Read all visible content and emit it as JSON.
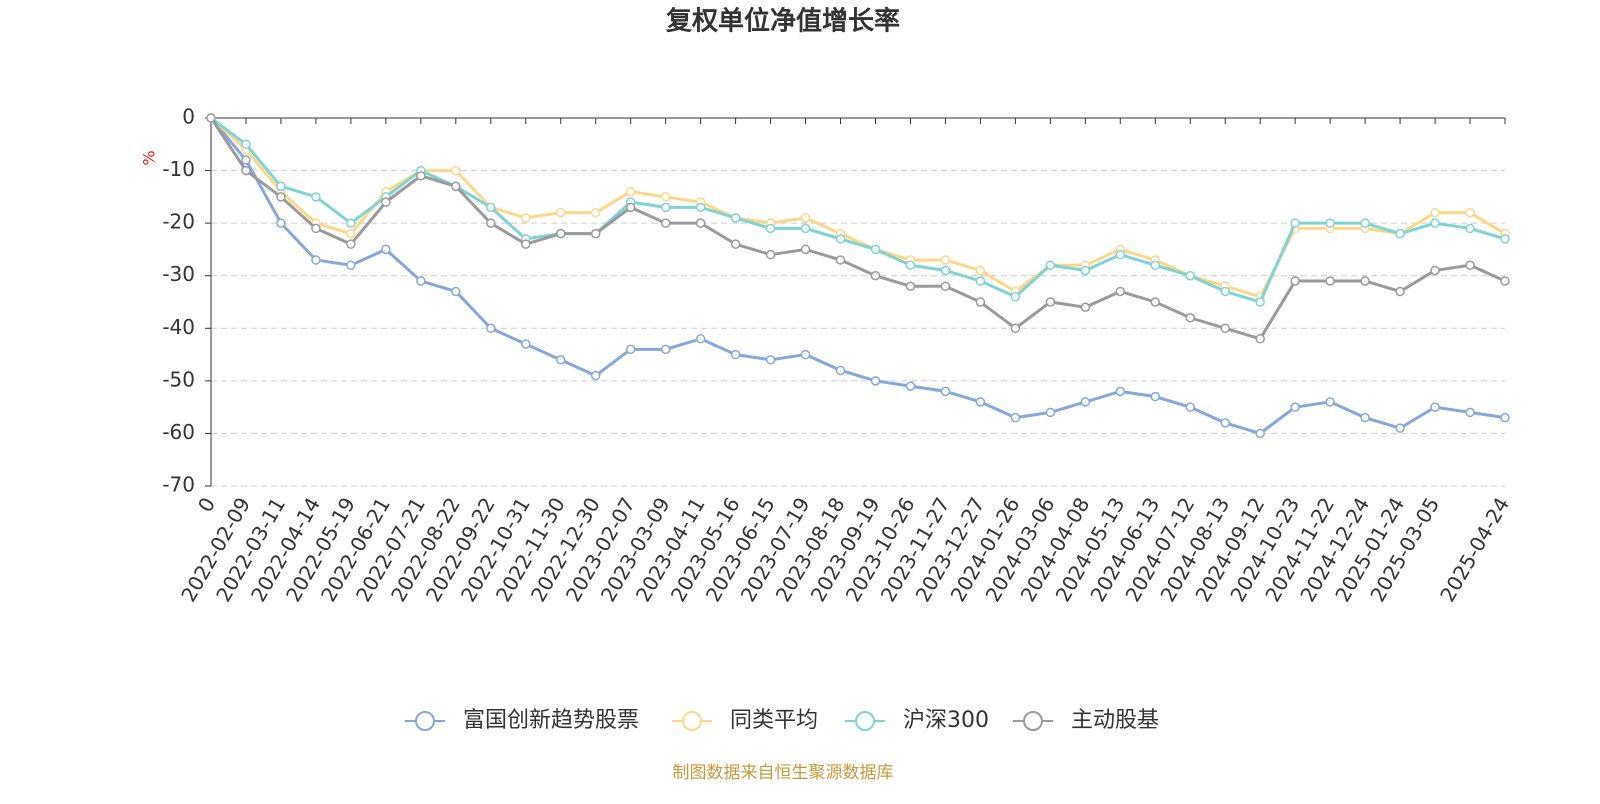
{
  "chart_data": {
    "type": "line",
    "title": "复权单位净值增长率",
    "y_label": "%",
    "source": "制图数据来自恒生聚源数据库",
    "categories": [
      "0",
      "2022-02-09",
      "2022-03-11",
      "2022-04-14",
      "2022-05-19",
      "2022-06-21",
      "2022-07-21",
      "2022-08-22",
      "2022-09-22",
      "2022-10-31",
      "2022-11-30",
      "2022-12-30",
      "2023-02-07",
      "2023-03-09",
      "2023-04-11",
      "2023-05-16",
      "2023-06-15",
      "2023-07-19",
      "2023-08-18",
      "2023-09-19",
      "2023-10-26",
      "2023-11-27",
      "2023-12-27",
      "2024-01-26",
      "2024-03-06",
      "2024-04-08",
      "2024-05-13",
      "2024-06-13",
      "2024-07-12",
      "2024-08-13",
      "2024-09-12",
      "2024-10-23",
      "2024-11-22",
      "2024-12-24",
      "2025-01-24",
      "2025-03-05",
      null,
      "2025-04-24"
    ],
    "series": [
      {
        "name": "富国创新趋势股票",
        "color": "#86a6dc",
        "values": [
          0,
          -8,
          -20,
          -27,
          -28,
          -25,
          -31,
          -33,
          -40,
          -43,
          -46,
          -49,
          -44,
          -44,
          -42,
          -45,
          -46,
          -45,
          -48,
          -50,
          -51,
          -52,
          -54,
          -57,
          -56,
          -54,
          -52,
          -53,
          -55,
          -58,
          -60,
          -55,
          -54,
          -57,
          -59,
          -55,
          -56,
          -57
        ]
      },
      {
        "name": "同类平均",
        "color": "#fcd78a",
        "values": [
          0,
          -6,
          -14,
          -20,
          -22,
          -14,
          -10,
          -10,
          -17,
          -19,
          -18,
          -18,
          -14,
          -15,
          -16,
          -19,
          -20,
          -19,
          -22,
          -25,
          -27,
          -27,
          -29,
          -33,
          -28,
          -28,
          -25,
          -27,
          -30,
          -32,
          -34,
          -21,
          -21,
          -21,
          -22,
          -18,
          -18,
          -22
        ]
      },
      {
        "name": "沪深300",
        "color": "#7fd3d3",
        "values": [
          0,
          -5,
          -13,
          -15,
          -20,
          -15,
          -10,
          -13,
          -17,
          -23,
          -22,
          -22,
          -16,
          -17,
          -17,
          -19,
          -21,
          -21,
          -23,
          -25,
          -28,
          -29,
          -31,
          -34,
          -28,
          -29,
          -26,
          -28,
          -30,
          -33,
          -35,
          -20,
          -20,
          -20,
          -22,
          -20,
          -21,
          -23
        ]
      },
      {
        "name": "主动股基",
        "color": "#9a9a9a",
        "values": [
          0,
          -10,
          -15,
          -21,
          -24,
          -16,
          -11,
          -13,
          -20,
          -24,
          -22,
          -22,
          -17,
          -20,
          -20,
          -24,
          -26,
          -25,
          -27,
          -30,
          -32,
          -32,
          -35,
          -40,
          -35,
          -36,
          -33,
          -35,
          -38,
          -40,
          -42,
          -31,
          -31,
          -31,
          -33,
          -29,
          -28,
          -31
        ]
      }
    ],
    "ylim": [
      -70,
      0
    ],
    "yticks": [
      0,
      -10,
      -20,
      -30,
      -40,
      -50,
      -60,
      -70
    ],
    "grid": true
  }
}
